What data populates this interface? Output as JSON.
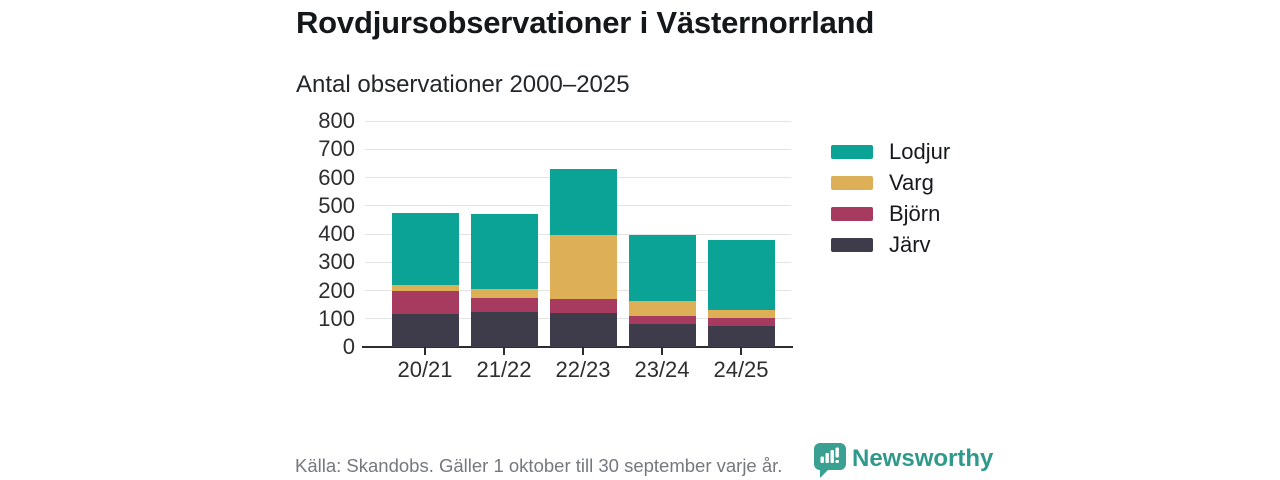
{
  "header": {
    "title": "Rovdjursobservationer i Västernorrland",
    "subtitle": "Antal observationer 2000–2025"
  },
  "chart_data": {
    "type": "bar",
    "stacked": true,
    "title": "Rovdjursobservationer i Västernorrland",
    "subtitle": "Antal observationer 2000–2025",
    "categories": [
      "20/21",
      "21/22",
      "22/23",
      "23/24",
      "24/25"
    ],
    "series": [
      {
        "name": "Järv",
        "color": "#3e3b4a",
        "values": [
          118,
          125,
          122,
          81,
          76
        ]
      },
      {
        "name": "Björn",
        "color": "#a73b5f",
        "values": [
          80,
          50,
          48,
          29,
          26
        ]
      },
      {
        "name": "Varg",
        "color": "#ddb057",
        "values": [
          22,
          30,
          228,
          52,
          28
        ]
      },
      {
        "name": "Lodjur",
        "color": "#0aa396",
        "values": [
          255,
          265,
          232,
          233,
          248
        ]
      }
    ],
    "totals": [
      475,
      470,
      630,
      395,
      378
    ],
    "legend_order": [
      "Lodjur",
      "Varg",
      "Björn",
      "Järv"
    ],
    "legend_position": "right",
    "xlabel": "",
    "ylabel": "",
    "ylim": [
      0,
      800
    ],
    "ytick_step": 100,
    "grid": true,
    "grid_color": "#e4e4e6",
    "axis_color": "#2d2d30"
  },
  "footer": {
    "source": "Källa: Skandobs. Gäller 1 oktober till 30 september varje år.",
    "brand": "Newsworthy",
    "brand_color": "#2f9a8b"
  }
}
